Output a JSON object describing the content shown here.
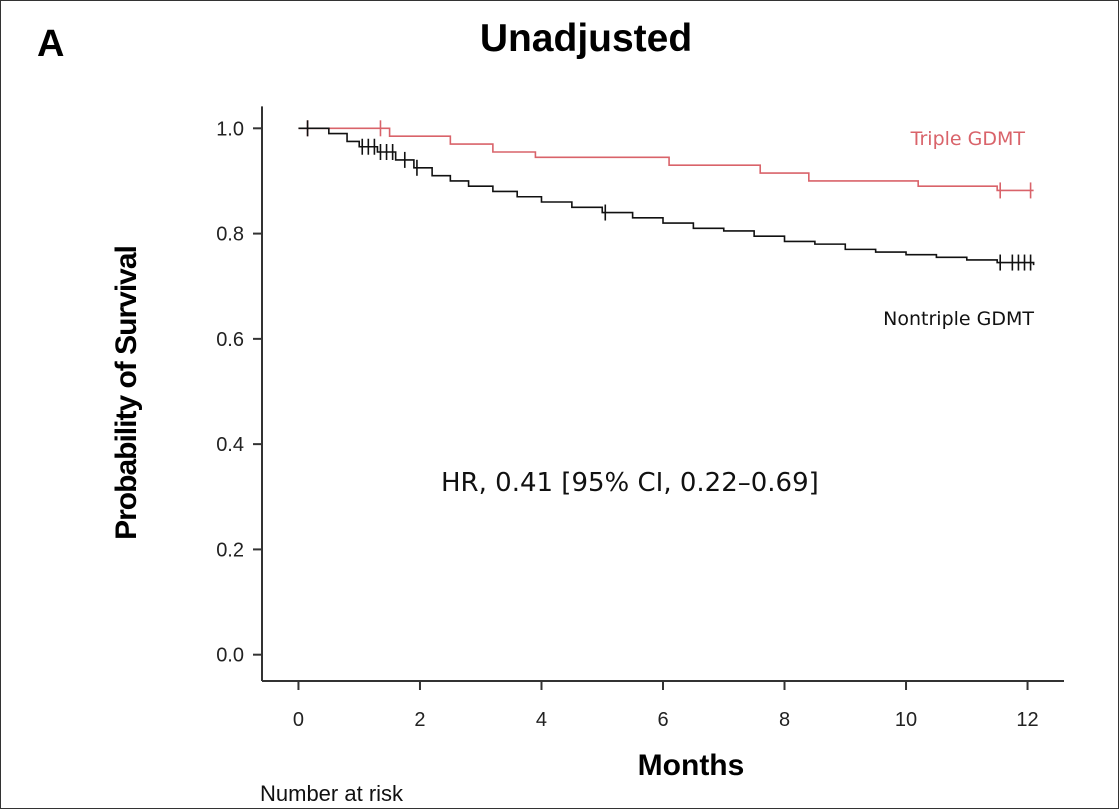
{
  "panel_letter": "A",
  "chart_data": {
    "type": "line",
    "subtype": "kaplan-meier",
    "title": "Unadjusted",
    "xlabel": "Months",
    "ylabel": "Probability of Survival",
    "xlim": [
      -0.6,
      12.6
    ],
    "ylim": [
      -0.05,
      1.05
    ],
    "x_ticks": [
      0,
      2,
      4,
      6,
      8,
      10,
      12
    ],
    "y_ticks": [
      0.0,
      0.2,
      0.4,
      0.6,
      0.8,
      1.0
    ],
    "y_tick_labels": [
      "0.0",
      "0.2",
      "0.4",
      "0.6",
      "0.8",
      "1.0"
    ],
    "grid": false,
    "annotation": "HR, 0.41 [95% CI, 0.22–0.69]",
    "series": [
      {
        "name": "Triple GDMT",
        "color": "#d9636a",
        "steps": [
          [
            0,
            1.0
          ],
          [
            1.5,
            0.985
          ],
          [
            2.5,
            0.97
          ],
          [
            3.2,
            0.955
          ],
          [
            3.9,
            0.945
          ],
          [
            6.1,
            0.93
          ],
          [
            7.6,
            0.915
          ],
          [
            8.4,
            0.9
          ],
          [
            10.2,
            0.89
          ],
          [
            11.5,
            0.882
          ],
          [
            12.1,
            0.882
          ]
        ],
        "censor_x": [
          0.15,
          1.35,
          11.55,
          12.05
        ]
      },
      {
        "name": "Nontriple GDMT",
        "color": "#111111",
        "steps": [
          [
            0,
            1.0
          ],
          [
            0.2,
            1.0
          ],
          [
            0.5,
            0.99
          ],
          [
            0.8,
            0.975
          ],
          [
            1.0,
            0.965
          ],
          [
            1.3,
            0.955
          ],
          [
            1.6,
            0.94
          ],
          [
            1.9,
            0.925
          ],
          [
            2.2,
            0.91
          ],
          [
            2.5,
            0.9
          ],
          [
            2.8,
            0.89
          ],
          [
            3.2,
            0.88
          ],
          [
            3.6,
            0.87
          ],
          [
            4.0,
            0.86
          ],
          [
            4.5,
            0.85
          ],
          [
            5.0,
            0.84
          ],
          [
            5.5,
            0.83
          ],
          [
            6.0,
            0.82
          ],
          [
            6.5,
            0.81
          ],
          [
            7.0,
            0.805
          ],
          [
            7.5,
            0.795
          ],
          [
            8.0,
            0.785
          ],
          [
            8.5,
            0.78
          ],
          [
            9.0,
            0.77
          ],
          [
            9.5,
            0.765
          ],
          [
            10.0,
            0.76
          ],
          [
            10.5,
            0.755
          ],
          [
            11.0,
            0.75
          ],
          [
            11.5,
            0.745
          ],
          [
            12.1,
            0.74
          ]
        ],
        "censor_x": [
          0.15,
          1.05,
          1.15,
          1.25,
          1.35,
          1.45,
          1.55,
          1.75,
          1.95,
          5.05,
          11.55,
          11.75,
          11.85,
          11.95,
          12.05
        ]
      }
    ]
  },
  "risk_table": {
    "label": "Number at risk"
  }
}
